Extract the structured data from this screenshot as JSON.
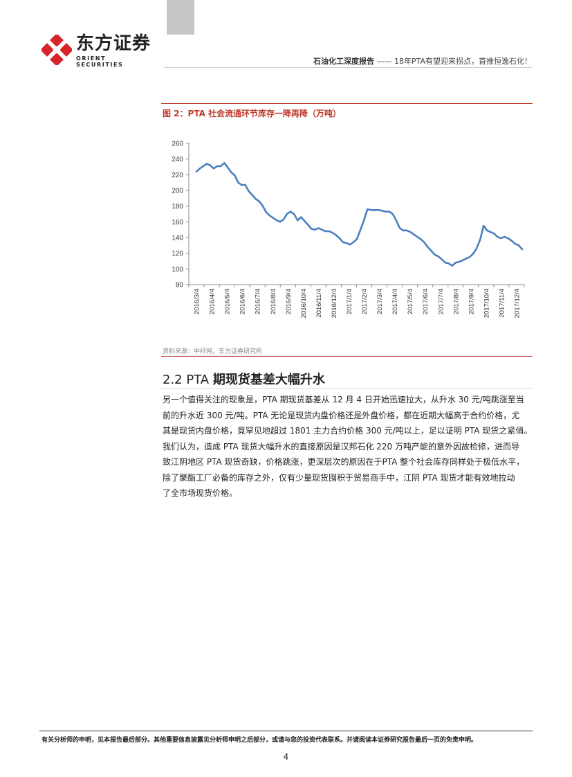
{
  "header": {
    "logo_cn": "东方证券",
    "logo_en": "ORIENT  SECURITIES",
    "report_type": "石油化工深度报告",
    "report_subtitle": "—— 18年PTA有望迎来拐点，首推恒逸石化！"
  },
  "figure": {
    "title": "图 2：PTA 社会流通环节库存一降再降（万吨）",
    "source": "资料来源：中纤网，东方证券研究所"
  },
  "chart_data": {
    "type": "line",
    "title": "",
    "xlabel": "",
    "ylabel": "",
    "ylim": [
      80,
      260
    ],
    "yticks": [
      80,
      100,
      120,
      140,
      160,
      180,
      200,
      220,
      240,
      260
    ],
    "categories": [
      "2016/3/4",
      "2016/4/4",
      "2016/5/4",
      "2016/6/4",
      "2016/7/4",
      "2016/8/4",
      "2016/9/4",
      "2016/10/4",
      "2016/11/4",
      "2016/12/4",
      "2017/1/4",
      "2017/2/4",
      "2017/3/4",
      "2017/4/4",
      "2017/5/4",
      "2017/6/4",
      "2017/7/4",
      "2017/8/4",
      "2017/9/4",
      "2017/10/4",
      "2017/11/4",
      "2017/12/4"
    ],
    "grid": false,
    "legend": "none",
    "series": [
      {
        "color": "#4a7fbf",
        "x": [
          "2016/3/4",
          "2016/3/11",
          "2016/3/18",
          "2016/3/25",
          "2016/4/1",
          "2016/4/8",
          "2016/4/15",
          "2016/4/22",
          "2016/4/29",
          "2016/5/6",
          "2016/5/13",
          "2016/5/20",
          "2016/5/27",
          "2016/6/3",
          "2016/6/10",
          "2016/6/17",
          "2016/6/24",
          "2016/7/1",
          "2016/7/8",
          "2016/7/15",
          "2016/7/22",
          "2016/7/29",
          "2016/8/5",
          "2016/8/12",
          "2016/8/19",
          "2016/8/26",
          "2016/9/2",
          "2016/9/9",
          "2016/9/16",
          "2016/9/23",
          "2016/9/30",
          "2016/10/7",
          "2016/10/14",
          "2016/10/21",
          "2016/10/28",
          "2016/11/4",
          "2016/11/11",
          "2016/11/18",
          "2016/11/25",
          "2016/12/2",
          "2016/12/9",
          "2016/12/16",
          "2016/12/23",
          "2016/12/30",
          "2017/1/6",
          "2017/1/13",
          "2017/1/20",
          "2017/1/27",
          "2017/2/3",
          "2017/2/10",
          "2017/2/17",
          "2017/2/24",
          "2017/3/3",
          "2017/3/10",
          "2017/3/17",
          "2017/3/24",
          "2017/3/31",
          "2017/4/7",
          "2017/4/14",
          "2017/4/21",
          "2017/4/28",
          "2017/5/5",
          "2017/5/12",
          "2017/5/19",
          "2017/5/26",
          "2017/6/2",
          "2017/6/9",
          "2017/6/16",
          "2017/6/23",
          "2017/6/30",
          "2017/7/7",
          "2017/7/14",
          "2017/7/21",
          "2017/7/28",
          "2017/8/4",
          "2017/8/11",
          "2017/8/18",
          "2017/8/25",
          "2017/9/1",
          "2017/9/8",
          "2017/9/15",
          "2017/9/22",
          "2017/9/29",
          "2017/10/6",
          "2017/10/13",
          "2017/10/20",
          "2017/10/27",
          "2017/11/3",
          "2017/11/10",
          "2017/11/17",
          "2017/11/24",
          "2017/12/1",
          "2017/12/8",
          "2017/12/15"
        ],
        "values": [
          224,
          228,
          231,
          234,
          232,
          228,
          231,
          231,
          235,
          229,
          223,
          219,
          210,
          207,
          207,
          199,
          194,
          189,
          186,
          180,
          172,
          168,
          165,
          162,
          160,
          163,
          170,
          173,
          170,
          162,
          166,
          161,
          156,
          151,
          150,
          152,
          150,
          148,
          148,
          146,
          143,
          139,
          134,
          133,
          131,
          134,
          138,
          149,
          161,
          176,
          175,
          175,
          175,
          174,
          173,
          173,
          170,
          162,
          152,
          149,
          149,
          147,
          144,
          141,
          138,
          134,
          128,
          123,
          118,
          116,
          112,
          108,
          107,
          104,
          108,
          109,
          111,
          113,
          115,
          119,
          126,
          137,
          155,
          149,
          147,
          145,
          141,
          139,
          141,
          139,
          136,
          132,
          130,
          125
        ]
      }
    ]
  },
  "section": {
    "number": "2.2 PTA ",
    "title": "期现货基差大幅升水"
  },
  "body_lines": [
    "另一个值得关注的现象是，PTA 期现货基差从 12 月 4 日开始迅速拉大，从升水 30 元/吨跳涨至当",
    "前的升水近 300 元/吨。PTA 无论是现货内盘价格还是外盘价格，都在近期大幅高于合约价格，尤",
    "其是现货内盘价格，竟罕见地超过 1801 主力合约价格 300 元/吨以上，足以证明 PTA 现货之紧俏。",
    "我们认为，造成 PTA 现货大幅升水的直接原因是汉邦石化 220 万吨产能的意外因故检修，进而导",
    "致江阴地区 PTA 现货奇缺，价格跳涨，更深层次的原因在于PTA 整个社会库存同样处于极低水平，",
    "除了聚酯工厂必备的库存之外，仅有少量现货囤积于贸易商手中，江阴 PTA 现货才能有效地拉动",
    "了全市场现货价格。"
  ],
  "footer": {
    "disclaimer": "有关分析师的申明，见本报告最后部分。其他重要信息披露见分析师申明之后部分，或请与您的投资代表联系。并请阅读本证券研究报告最后一页的免责申明。",
    "page_number": "4"
  }
}
